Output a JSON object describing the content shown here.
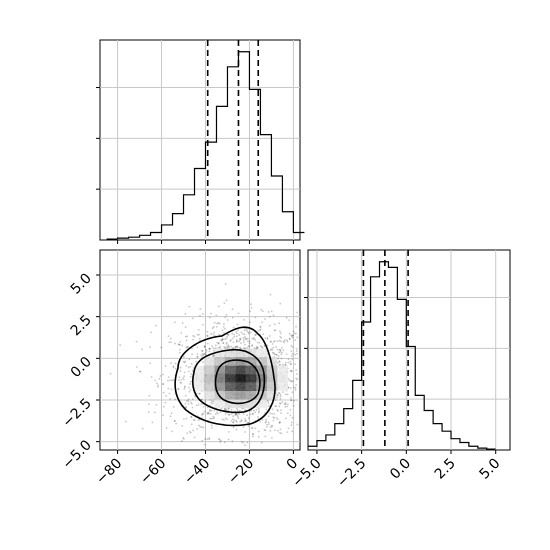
{
  "chart_data": [
    {
      "type": "histogram",
      "panel": "marginal-x",
      "bins": [
        -85,
        -80,
        -75,
        -70,
        -65,
        -60,
        -55,
        -50,
        -45,
        -40,
        -35,
        -30,
        -25,
        -20,
        -15,
        -10,
        -5,
        0,
        5
      ],
      "values": [
        0.005,
        0.01,
        0.015,
        0.025,
        0.04,
        0.08,
        0.14,
        0.24,
        0.38,
        0.52,
        0.71,
        0.92,
        1.0,
        0.8,
        0.56,
        0.34,
        0.15,
        0.04
      ],
      "quantiles": [
        -39,
        -25,
        -16
      ],
      "grid": true,
      "xlim": [
        -88,
        3
      ]
    },
    {
      "type": "histogram",
      "panel": "marginal-y",
      "bins": [
        -5.5,
        -5.0,
        -4.5,
        -4.0,
        -3.5,
        -3.0,
        -2.5,
        -2.0,
        -1.5,
        -1.0,
        -0.5,
        0.0,
        0.5,
        1.0,
        1.5,
        2.0,
        2.5,
        3.0,
        3.5,
        4.0,
        4.5,
        5.0
      ],
      "values": [
        0.02,
        0.05,
        0.08,
        0.14,
        0.22,
        0.37,
        0.68,
        0.92,
        1.0,
        0.97,
        0.8,
        0.55,
        0.29,
        0.21,
        0.14,
        0.1,
        0.06,
        0.04,
        0.02,
        0.01,
        0.005
      ],
      "quantiles": [
        -2.4,
        -1.2,
        0.1
      ],
      "grid": true,
      "xlim": [
        -5.5,
        5.8
      ],
      "xticks": [
        "−5.0",
        "−2.5",
        "0.0",
        "2.5",
        "5.0"
      ]
    },
    {
      "type": "heatmap",
      "panel": "joint",
      "x_center": -24,
      "y_center": -1.2,
      "x_sigma": 15,
      "y_sigma": 1.5,
      "grid": true,
      "xlim": [
        -88,
        3
      ],
      "ylim": [
        -5.5,
        6.5
      ],
      "xticks": [
        "−80",
        "−60",
        "−40",
        "−20",
        "0"
      ],
      "yticks": [
        "5.0",
        "2.5",
        "0.0",
        "−2.5",
        "−5.0"
      ]
    }
  ]
}
